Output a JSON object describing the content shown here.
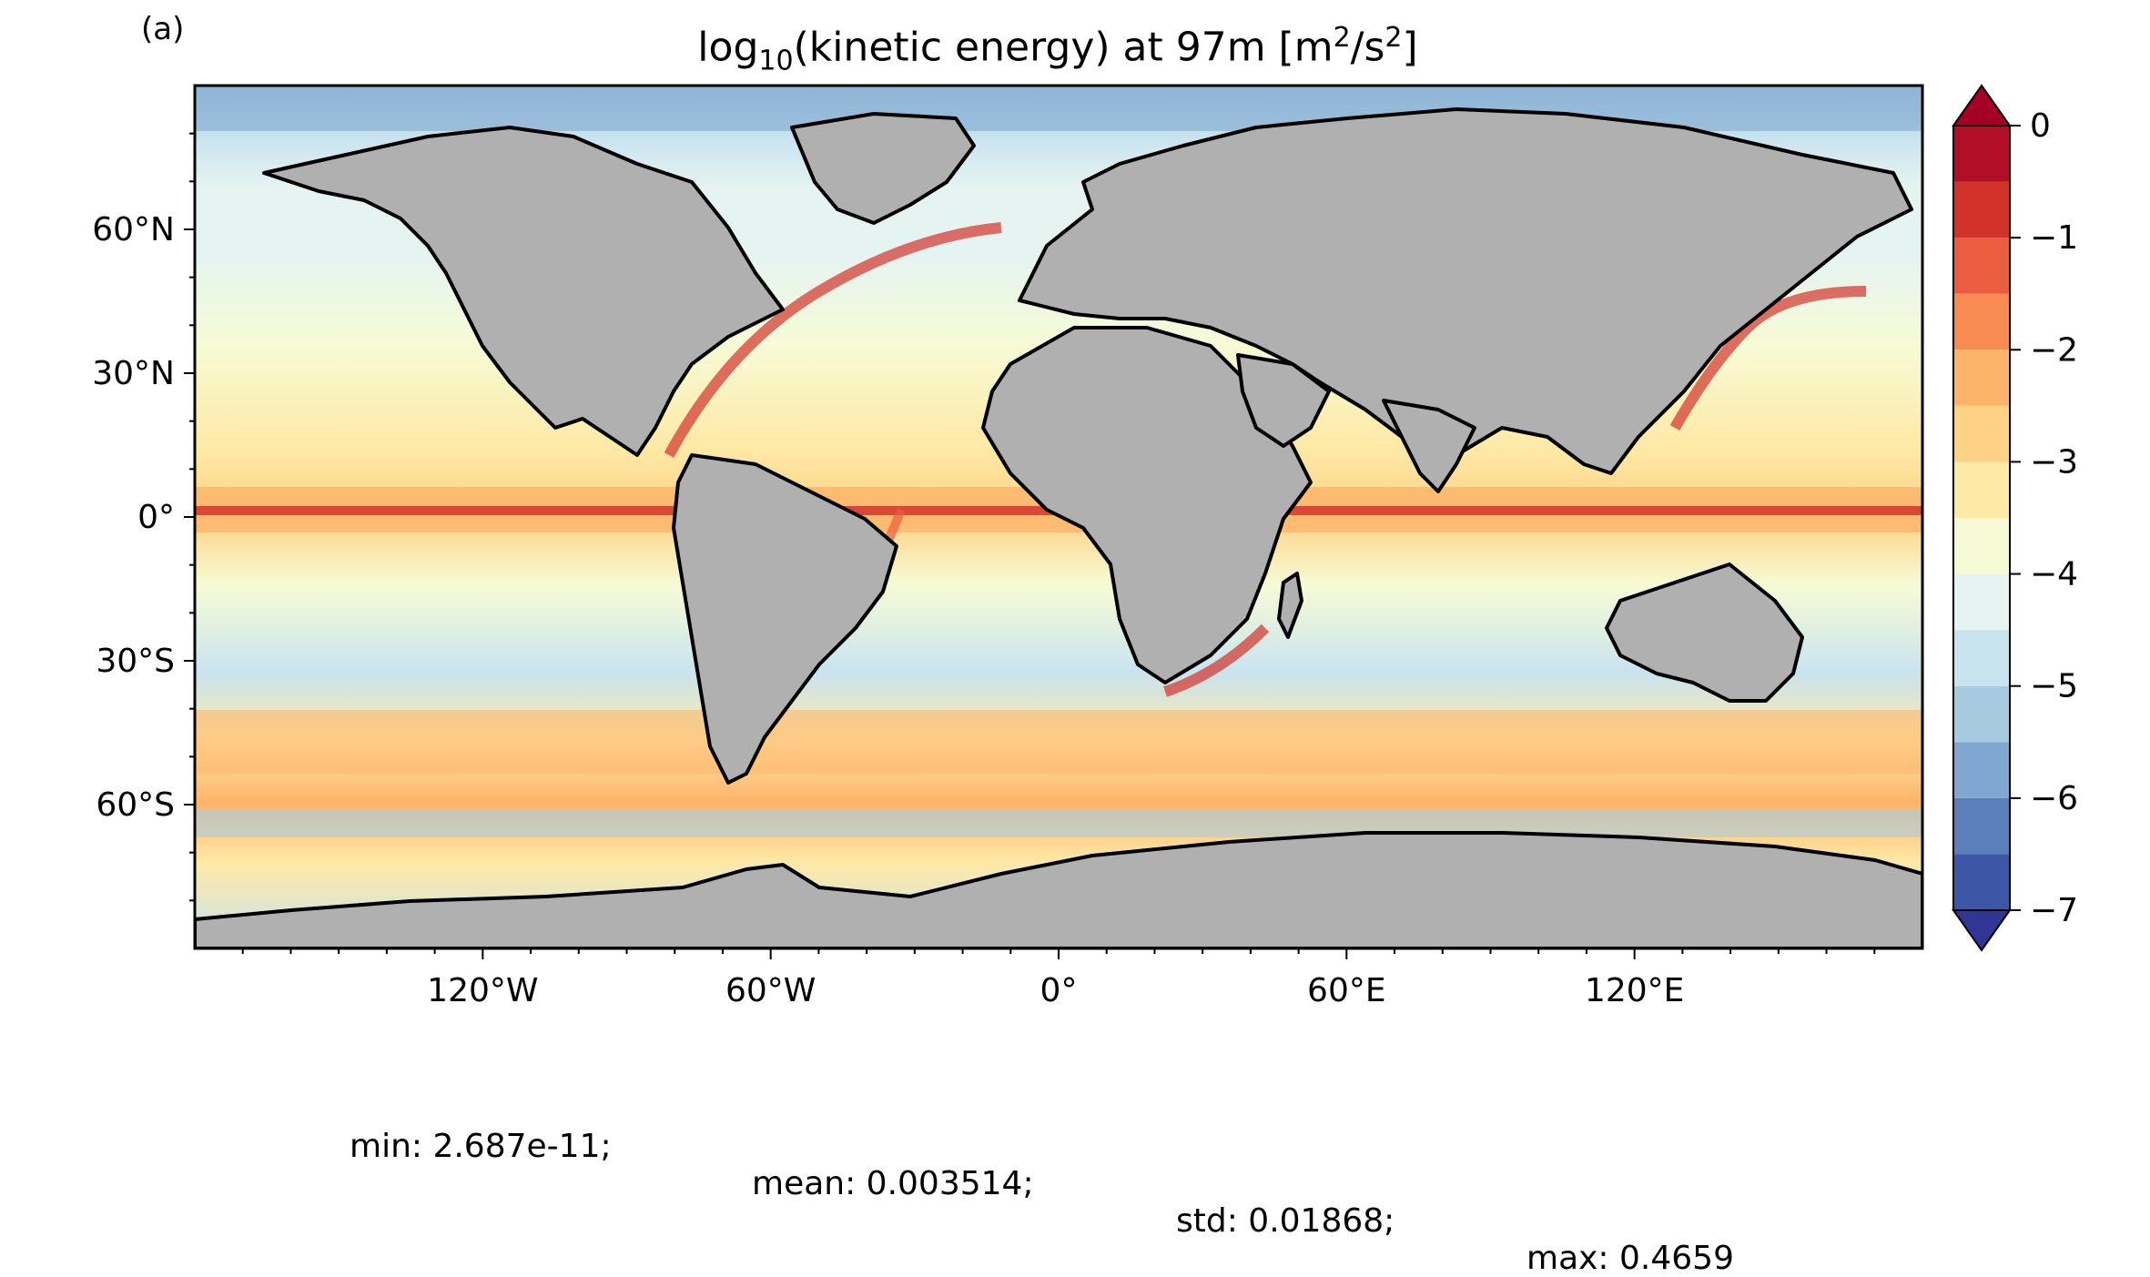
{
  "panel_label": "(a)",
  "title": {
    "prefix": "log",
    "prefix_sub": "10",
    "main": "(kinetic energy) at 97m [m",
    "sup1": "2",
    "mid": "/s",
    "sup2": "2",
    "suffix": "]"
  },
  "axes": {
    "x_ticks": [
      {
        "value": -120,
        "label": "120°W"
      },
      {
        "value": -60,
        "label": "60°W"
      },
      {
        "value": 0,
        "label": "0°"
      },
      {
        "value": 60,
        "label": "60°E"
      },
      {
        "value": 120,
        "label": "120°E"
      }
    ],
    "y_ticks": [
      {
        "value": 60,
        "label": "60°N"
      },
      {
        "value": 30,
        "label": "30°N"
      },
      {
        "value": 0,
        "label": "0°"
      },
      {
        "value": -30,
        "label": "30°S"
      },
      {
        "value": -60,
        "label": "60°S"
      }
    ],
    "x_range": [
      -180,
      180
    ],
    "y_range": [
      -90,
      90
    ]
  },
  "colorbar": {
    "ticks": [
      {
        "value": 0,
        "label": "0"
      },
      {
        "value": -1,
        "label": "−1"
      },
      {
        "value": -2,
        "label": "−2"
      },
      {
        "value": -3,
        "label": "−3"
      },
      {
        "value": -4,
        "label": "−4"
      },
      {
        "value": -5,
        "label": "−5"
      },
      {
        "value": -6,
        "label": "−6"
      },
      {
        "value": -7,
        "label": "−7"
      }
    ],
    "range": [
      -7,
      0
    ],
    "extend": "both",
    "colors": [
      "#313695",
      "#3e56a6",
      "#5b7fbb",
      "#7fa7cf",
      "#a6cbe1",
      "#c9e3ef",
      "#e6f4f1",
      "#f6fbd6",
      "#fee9a6",
      "#fed285",
      "#fdb36a",
      "#f88b51",
      "#ea5d3f",
      "#d3322b",
      "#b20e27",
      "#a50026"
    ]
  },
  "stats": {
    "min": "min: 2.687e-11;",
    "mean": "mean: 0.003514;",
    "std": "std: 0.01868;",
    "max": "max: 0.4659"
  },
  "colors": {
    "land": "#b0b0b0",
    "ice": "#ffffff"
  }
}
